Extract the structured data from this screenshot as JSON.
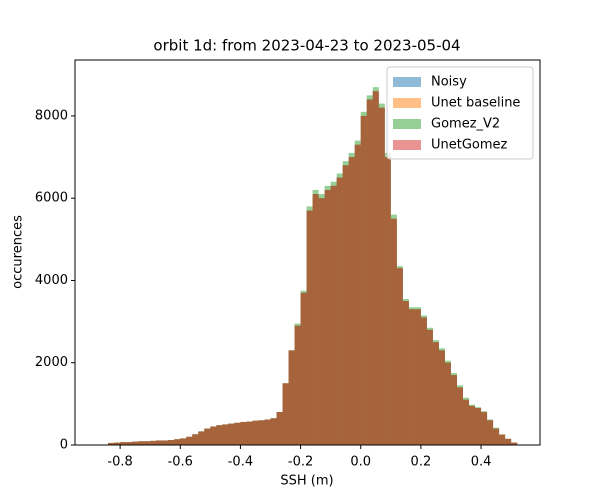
{
  "chart_data": {
    "type": "histogram",
    "title": "orbit 1d: from 2023-04-23 to 2023-05-04",
    "xlabel": "SSH (m)",
    "ylabel": "occurences",
    "bins": [
      -0.86,
      -0.84,
      -0.82,
      -0.8,
      -0.78,
      -0.76,
      -0.74,
      -0.72,
      -0.7,
      -0.68,
      -0.66,
      -0.64,
      -0.62,
      -0.6,
      -0.58,
      -0.56,
      -0.54,
      -0.52,
      -0.5,
      -0.48,
      -0.46,
      -0.44,
      -0.42,
      -0.4,
      -0.38,
      -0.36,
      -0.34,
      -0.32,
      -0.3,
      -0.28,
      -0.26,
      -0.24,
      -0.22,
      -0.2,
      -0.18,
      -0.16,
      -0.14,
      -0.12,
      -0.1,
      -0.08,
      -0.06,
      -0.04,
      -0.02,
      0.0,
      0.02,
      0.04,
      0.06,
      0.08,
      0.1,
      0.12,
      0.14,
      0.16,
      0.18,
      0.2,
      0.22,
      0.24,
      0.26,
      0.28,
      0.3,
      0.32,
      0.34,
      0.36,
      0.38,
      0.4,
      0.42,
      0.44,
      0.46,
      0.48,
      0.5,
      0.52
    ],
    "series": [
      {
        "name": "Noisy",
        "color": "#1f77b4",
        "alpha": 0.5,
        "values": [
          0,
          50,
          60,
          70,
          70,
          80,
          90,
          90,
          100,
          110,
          110,
          120,
          140,
          160,
          200,
          260,
          330,
          400,
          450,
          480,
          500,
          520,
          540,
          560,
          570,
          590,
          600,
          620,
          650,
          800,
          1500,
          2300,
          2900,
          3700,
          5700,
          6100,
          6000,
          6200,
          6300,
          6500,
          6800,
          7000,
          7300,
          8000,
          8400,
          8600,
          8200,
          7000,
          5500,
          4300,
          3500,
          3300,
          3300,
          3100,
          2800,
          2500,
          2300,
          2000,
          1700,
          1400,
          1100,
          950,
          900,
          800,
          600,
          400,
          250,
          150,
          60
        ]
      },
      {
        "name": "Unet baseline",
        "color": "#ff7f0e",
        "alpha": 0.5,
        "values": [
          0,
          50,
          60,
          70,
          70,
          80,
          90,
          90,
          100,
          110,
          110,
          120,
          140,
          160,
          200,
          260,
          330,
          400,
          450,
          480,
          500,
          520,
          540,
          560,
          570,
          590,
          600,
          620,
          650,
          800,
          1500,
          2300,
          2900,
          3700,
          5700,
          6100,
          6000,
          6200,
          6300,
          6500,
          6800,
          7000,
          7300,
          8000,
          8400,
          8600,
          8200,
          7000,
          5500,
          4300,
          3500,
          3300,
          3300,
          3100,
          2800,
          2500,
          2300,
          2000,
          1700,
          1400,
          1100,
          950,
          900,
          800,
          600,
          400,
          250,
          150,
          60
        ]
      },
      {
        "name": "Gomez_V2",
        "color": "#2ca02c",
        "alpha": 0.5,
        "values": [
          0,
          50,
          60,
          70,
          70,
          80,
          90,
          90,
          100,
          110,
          110,
          120,
          140,
          160,
          200,
          260,
          330,
          400,
          450,
          480,
          500,
          520,
          540,
          560,
          570,
          590,
          600,
          620,
          650,
          800,
          1500,
          2300,
          2950,
          3750,
          5800,
          6200,
          6100,
          6300,
          6400,
          6600,
          6900,
          7100,
          7400,
          8100,
          8500,
          8700,
          8300,
          7100,
          5600,
          4350,
          3550,
          3350,
          3350,
          3150,
          2850,
          2550,
          2350,
          2050,
          1750,
          1450,
          1150,
          980,
          920,
          820,
          620,
          420,
          260,
          150,
          60
        ]
      },
      {
        "name": "UnetGomez",
        "color": "#d62728",
        "alpha": 0.5,
        "values": [
          0,
          50,
          60,
          70,
          70,
          80,
          90,
          90,
          100,
          110,
          110,
          120,
          140,
          160,
          200,
          260,
          330,
          400,
          450,
          480,
          500,
          520,
          540,
          560,
          570,
          590,
          600,
          620,
          650,
          800,
          1500,
          2300,
          2900,
          3700,
          5700,
          6100,
          6000,
          6200,
          6300,
          6500,
          6800,
          7000,
          7300,
          8000,
          8400,
          8600,
          8200,
          7000,
          5500,
          4300,
          3500,
          3300,
          3300,
          3100,
          2800,
          2500,
          2300,
          2000,
          1700,
          1400,
          1100,
          950,
          900,
          800,
          600,
          400,
          250,
          150,
          60
        ]
      }
    ],
    "xlim": [
      -0.95,
      0.596
    ],
    "ylim": [
      0,
      9360
    ],
    "xticks": [
      -0.8,
      -0.6,
      -0.4,
      -0.2,
      {
        "value": 0,
        "label": "0.0"
      },
      0.2,
      0.4
    ],
    "yticks": [
      0,
      2000,
      4000,
      6000,
      8000
    ],
    "legend": "upper right"
  }
}
